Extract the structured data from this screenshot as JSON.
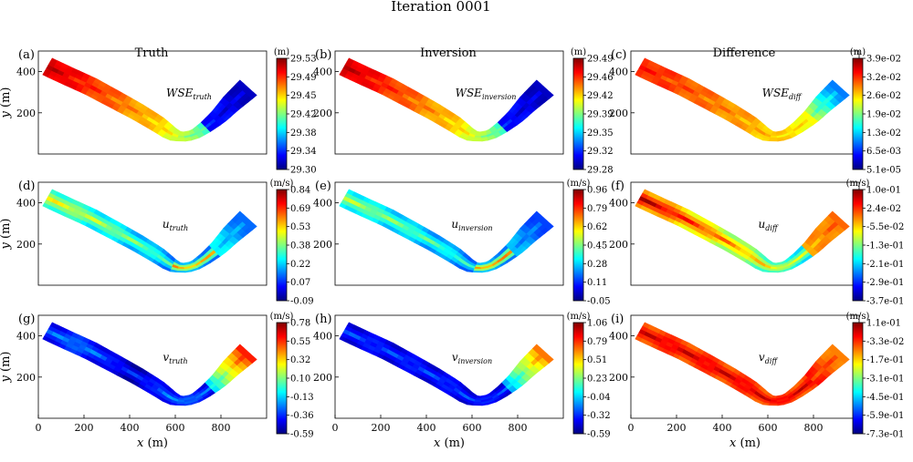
{
  "figure_title": "Iteration 0001",
  "column_titles": [
    "Truth",
    "Inversion",
    "Difference"
  ],
  "colormap": [
    "#00007f",
    "#0000ff",
    "#007fff",
    "#00ffff",
    "#7fff7f",
    "#ffff00",
    "#ff7f00",
    "#ff0000",
    "#7f0000"
  ],
  "chart_data": [
    {
      "type": "heatmap",
      "panel": "(a)",
      "label_base": "WSE",
      "label_sub": "truth",
      "unit": "(m)",
      "xlabel": "",
      "ylabel": "y (m)",
      "xticks": [],
      "yticks": [
        200,
        400
      ],
      "colorbar_ticks": [
        "29.53",
        "29.49",
        "29.45",
        "29.42",
        "29.38",
        "29.34",
        "29.30"
      ],
      "field": "wse"
    },
    {
      "type": "heatmap",
      "panel": "(b)",
      "label_base": "WSE",
      "label_sub": "inversion",
      "unit": "(m)",
      "xlabel": "",
      "ylabel": "",
      "xticks": [],
      "yticks": [
        200,
        400
      ],
      "colorbar_ticks": [
        "29.49",
        "29.46",
        "29.42",
        "29.39",
        "29.35",
        "29.32",
        "29.28"
      ],
      "field": "wse"
    },
    {
      "type": "heatmap",
      "panel": "(c)",
      "label_base": "WSE",
      "label_sub": "diff",
      "unit": "(m)",
      "xlabel": "",
      "ylabel": "",
      "xticks": [],
      "yticks": [
        200,
        400
      ],
      "colorbar_ticks": [
        "3.9e-02",
        "3.2e-02",
        "2.6e-02",
        "1.9e-02",
        "1.3e-02",
        "6.5e-03",
        "5.1e-05"
      ],
      "field": "wsediff"
    },
    {
      "type": "heatmap",
      "panel": "(d)",
      "label_base": "u",
      "label_sub": "truth",
      "unit": "(m/s)",
      "xlabel": "",
      "ylabel": "y (m)",
      "xticks": [],
      "yticks": [
        200,
        400
      ],
      "colorbar_ticks": [
        "0.84",
        "0.69",
        "0.53",
        "0.38",
        "0.22",
        "0.07",
        "-0.09"
      ],
      "field": "u"
    },
    {
      "type": "heatmap",
      "panel": "(e)",
      "label_base": "u",
      "label_sub": "inversion",
      "unit": "(m/s)",
      "xlabel": "",
      "ylabel": "",
      "xticks": [],
      "yticks": [
        200,
        400
      ],
      "colorbar_ticks": [
        "0.96",
        "0.79",
        "0.62",
        "0.45",
        "0.28",
        "0.11",
        "-0.05"
      ],
      "field": "uinv"
    },
    {
      "type": "heatmap",
      "panel": "(f)",
      "label_base": "u",
      "label_sub": "diff",
      "unit": "(m/s)",
      "xlabel": "",
      "ylabel": "",
      "xticks": [],
      "yticks": [
        200,
        400
      ],
      "colorbar_ticks": [
        "1.0e-01",
        "2.4e-02",
        "-5.5e-02",
        "-1.3e-01",
        "-2.1e-01",
        "-2.9e-01",
        "-3.7e-01"
      ],
      "field": "udiff"
    },
    {
      "type": "heatmap",
      "panel": "(g)",
      "label_base": "v",
      "label_sub": "truth",
      "unit": "(m/s)",
      "xlabel": "x (m)",
      "ylabel": "y (m)",
      "xticks": [
        0,
        200,
        400,
        600,
        800
      ],
      "yticks": [
        200,
        400
      ],
      "colorbar_ticks": [
        "0.78",
        "0.55",
        "0.32",
        "0.10",
        "-0.13",
        "-0.36",
        "-0.59"
      ],
      "field": "v"
    },
    {
      "type": "heatmap",
      "panel": "(h)",
      "label_base": "v",
      "label_sub": "inversion",
      "unit": "(m/s)",
      "xlabel": "x (m)",
      "ylabel": "",
      "xticks": [
        0,
        200,
        400,
        600,
        800
      ],
      "yticks": [
        200,
        400
      ],
      "colorbar_ticks": [
        "1.06",
        "0.79",
        "0.51",
        "0.23",
        "-0.04",
        "-0.32",
        "-0.59"
      ],
      "field": "vinv"
    },
    {
      "type": "heatmap",
      "panel": "(i)",
      "label_base": "v",
      "label_sub": "diff",
      "unit": "(m/s)",
      "xlabel": "x (m)",
      "ylabel": "",
      "xticks": [
        0,
        200,
        400,
        600,
        800
      ],
      "yticks": [
        200,
        400
      ],
      "colorbar_ticks": [
        "1.1e-01",
        "-3.3e-02",
        "-1.7e-01",
        "-3.1e-01",
        "-4.5e-01",
        "-5.9e-01",
        "-7.3e-01"
      ],
      "field": "vdiff"
    }
  ],
  "axis_ranges": {
    "x": [
      0,
      1000
    ],
    "y": [
      0,
      500
    ]
  }
}
